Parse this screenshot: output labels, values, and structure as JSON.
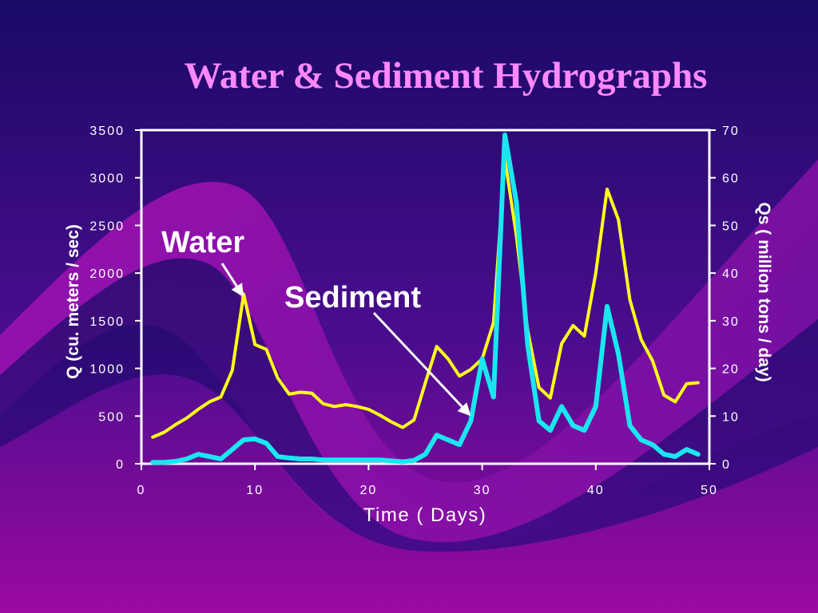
{
  "slide": {
    "title": "Water & Sediment Hydrographs"
  },
  "colors": {
    "background_top": "#1a0a66",
    "background_bottom": "#9a0aa0",
    "title": "#ff88ff",
    "axis": "#ffffff",
    "water": "#ffff1a",
    "sediment": "#1ae6f0"
  },
  "chart_data": {
    "type": "line",
    "xlabel": "Time ( Days)",
    "ylabel": "Q (cu. meters / sec)",
    "y2label": "Qs ( million tons / day)",
    "xlim": [
      0,
      50
    ],
    "ylim": [
      0,
      3500
    ],
    "y2lim": [
      0,
      70
    ],
    "x_ticks": [
      "0",
      "10",
      "20",
      "30",
      "40",
      "50"
    ],
    "y_ticks": [
      "0",
      "500",
      "1000",
      "1500",
      "2000",
      "2500",
      "3000",
      "3500"
    ],
    "y2_ticks": [
      "0",
      "10",
      "20",
      "30",
      "40",
      "50",
      "60",
      "70"
    ],
    "grid": false,
    "annotations": [
      {
        "text": "Water",
        "points_to_series": "Water",
        "at_x": 9,
        "at_y": 1750
      },
      {
        "text": "Sediment",
        "points_to_series": "Sediment",
        "at_x": 29,
        "at_y": 10
      }
    ],
    "series": [
      {
        "name": "Water",
        "axis": "left",
        "x": [
          1,
          2,
          3,
          4,
          5,
          6,
          7,
          8,
          9,
          10,
          11,
          12,
          13,
          14,
          15,
          16,
          17,
          18,
          19,
          20,
          21,
          22,
          23,
          24,
          25,
          26,
          27,
          28,
          29,
          30,
          31,
          32,
          33,
          34,
          35,
          36,
          37,
          38,
          39,
          40,
          41,
          42,
          43,
          44,
          45,
          46,
          47,
          48,
          49
        ],
        "y": [
          280,
          330,
          410,
          480,
          570,
          650,
          700,
          980,
          1780,
          1250,
          1200,
          900,
          730,
          750,
          740,
          630,
          600,
          620,
          600,
          570,
          510,
          440,
          380,
          460,
          850,
          1230,
          1100,
          920,
          990,
          1100,
          1480,
          3200,
          2400,
          1400,
          800,
          690,
          1260,
          1450,
          1340,
          2000,
          2880,
          2560,
          1720,
          1300,
          1080,
          720,
          650,
          840,
          850
        ]
      },
      {
        "name": "Sediment",
        "axis": "right",
        "x": [
          1,
          2,
          3,
          4,
          5,
          6,
          7,
          8,
          9,
          10,
          11,
          12,
          13,
          14,
          15,
          16,
          17,
          18,
          19,
          20,
          21,
          22,
          23,
          24,
          25,
          26,
          27,
          28,
          29,
          30,
          31,
          32,
          33,
          34,
          35,
          36,
          37,
          38,
          39,
          40,
          41,
          42,
          43,
          44,
          45,
          46,
          47,
          48,
          49
        ],
        "y": [
          0.3,
          0.3,
          0.5,
          1,
          2,
          1.5,
          1,
          3,
          5,
          5.2,
          4.3,
          1.5,
          1.2,
          1,
          1,
          0.8,
          0.8,
          0.8,
          0.8,
          0.8,
          0.8,
          0.6,
          0.4,
          0.7,
          2,
          6,
          5,
          4,
          9,
          22,
          14,
          69,
          55,
          25,
          9,
          7,
          12,
          8,
          7,
          12,
          33,
          23,
          8,
          5,
          4,
          2,
          1.5,
          3,
          2
        ]
      }
    ]
  }
}
